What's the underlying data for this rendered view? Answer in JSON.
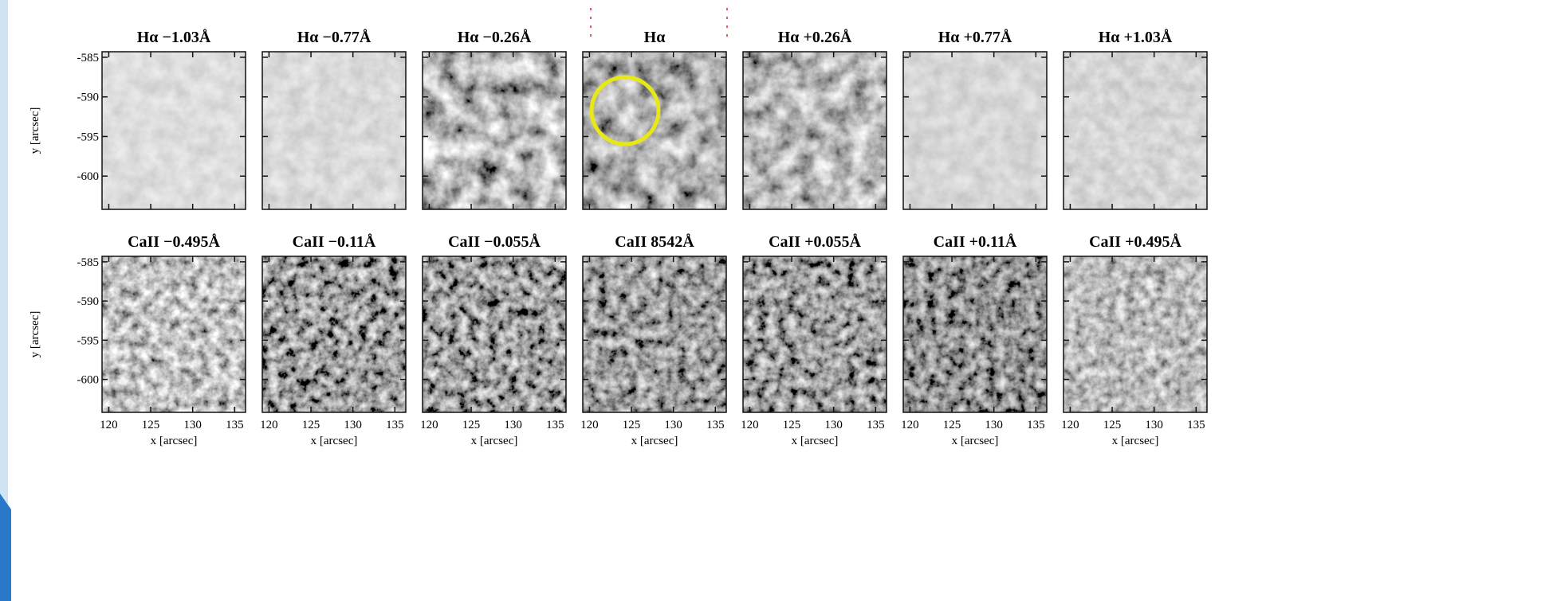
{
  "figure": {
    "rows": [
      {
        "panels": [
          {
            "title": "Hα −1.03Å"
          },
          {
            "title": "Hα −0.77Å"
          },
          {
            "title": "Hα −0.26Å"
          },
          {
            "title": "Hα"
          },
          {
            "title": "Hα +0.26Å"
          },
          {
            "title": "Hα +0.77Å"
          },
          {
            "title": "Hα +1.03Å"
          }
        ]
      },
      {
        "panels": [
          {
            "title": "CaII −0.495Å"
          },
          {
            "title": "CaII −0.11Å"
          },
          {
            "title": "CaII −0.055Å"
          },
          {
            "title": "CaII 8542Å"
          },
          {
            "title": "CaII +0.055Å"
          },
          {
            "title": "CaII +0.11Å"
          },
          {
            "title": "CaII +0.495Å"
          }
        ]
      }
    ],
    "xlabel": "x [arcsec]",
    "ylabel": "y [arcsec]",
    "xlim": [
      119.2,
      136.3
    ],
    "xticks": [
      120,
      125,
      130,
      135
    ],
    "ylim": [
      -604.2,
      -584.3
    ],
    "yticks": [
      -585,
      -590,
      -595,
      -600
    ]
  }
}
